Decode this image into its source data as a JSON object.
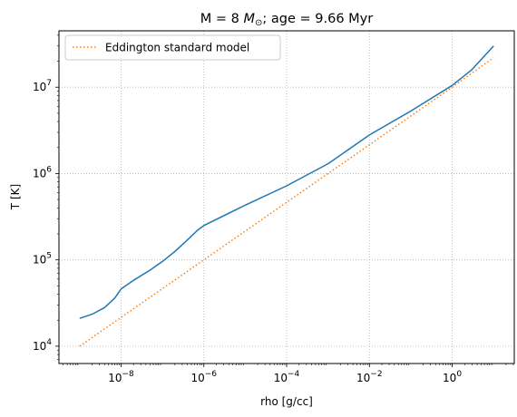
{
  "chart_data": {
    "type": "line",
    "title_parts": {
      "pre": "M = 8 ",
      "italic": "M",
      "sub": "⊙",
      "post": "; age = 9.66 Myr"
    },
    "xlabel": "rho [g/cc]",
    "ylabel": "T [K]",
    "xscale": "log",
    "yscale": "log",
    "xlim": [
      3.16e-10,
      31.6
    ],
    "ylim": [
      6300.0,
      45000000.0
    ],
    "xticks": [
      {
        "base": "10",
        "exp": "−8",
        "value": 1e-08
      },
      {
        "base": "10",
        "exp": "−6",
        "value": 1e-06
      },
      {
        "base": "10",
        "exp": "−4",
        "value": 0.0001
      },
      {
        "base": "10",
        "exp": "−2",
        "value": 0.01
      },
      {
        "base": "10",
        "exp": "0",
        "value": 1
      }
    ],
    "yticks": [
      {
        "base": "10",
        "exp": "4",
        "value": 10000.0
      },
      {
        "base": "10",
        "exp": "5",
        "value": 100000.0
      },
      {
        "base": "10",
        "exp": "6",
        "value": 1000000.0
      },
      {
        "base": "10",
        "exp": "7",
        "value": 10000000.0
      }
    ],
    "grid": true,
    "legend_position": "top-left",
    "series": [
      {
        "style": "solid",
        "color": "#1f77b4",
        "points": [
          [
            1e-09,
            21000.0
          ],
          [
            2e-09,
            23500.0
          ],
          [
            4e-09,
            28000.0
          ],
          [
            7e-09,
            36000.0
          ],
          [
            1e-08,
            46000.0
          ],
          [
            2e-08,
            58000.0
          ],
          [
            5e-08,
            76000.0
          ],
          [
            1e-07,
            96000.0
          ],
          [
            2e-07,
            125000.0
          ],
          [
            4e-07,
            170000.0
          ],
          [
            7e-07,
            220000.0
          ],
          [
            1e-06,
            250000.0
          ],
          [
            1e-05,
            430000.0
          ],
          [
            0.0001,
            720000.0
          ],
          [
            0.001,
            1300000.0
          ],
          [
            0.01,
            2800000.0
          ],
          [
            0.1,
            5300000.0
          ],
          [
            1.0,
            10500000.0
          ],
          [
            3.0,
            16000000.0
          ],
          [
            6.0,
            23000000.0
          ],
          [
            10.0,
            30000000.0
          ]
        ]
      },
      {
        "name": "Eddington standard model",
        "style": "dotted",
        "color": "#ff7f0e",
        "points": [
          [
            1e-09,
            10000.0
          ],
          [
            1e-06,
            100000.0
          ],
          [
            0.001,
            1000000.0
          ],
          [
            1.0,
            10000000.0
          ],
          [
            10.0,
            22000000.0
          ]
        ]
      }
    ]
  }
}
